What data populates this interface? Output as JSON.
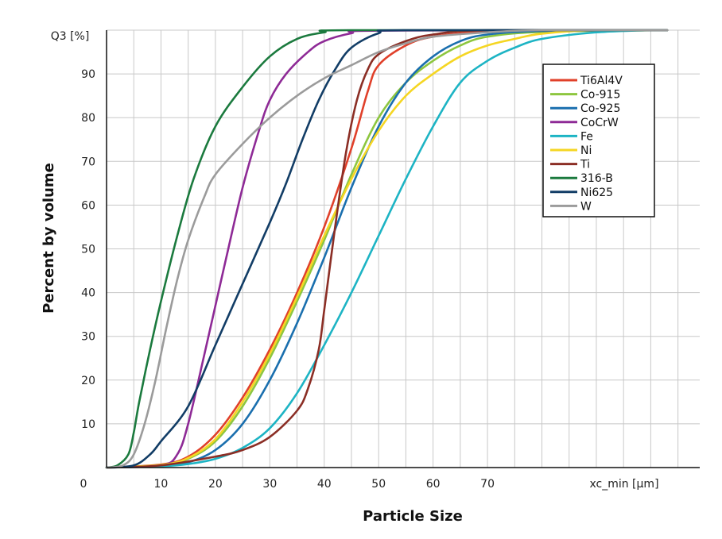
{
  "chart_data": {
    "type": "line",
    "title": "",
    "xlabel": "Particle Size",
    "ylabel": "Percent by volume",
    "x_unit_label": "xc_min [µm]",
    "y_unit_label": "Q3 [%]",
    "x_origin_label": "0",
    "xlim": [
      0,
      109
    ],
    "ylim": [
      0,
      100
    ],
    "x_ticks": [
      10,
      20,
      30,
      40,
      50,
      60,
      70
    ],
    "y_ticks": [
      10,
      20,
      30,
      40,
      50,
      60,
      70,
      80,
      90
    ],
    "grid": true,
    "legend_position": "top-right",
    "series": [
      {
        "name": "Ti6Al4V",
        "color": "#e0402a",
        "points": [
          [
            0,
            0
          ],
          [
            10,
            0.7
          ],
          [
            15,
            2.5
          ],
          [
            20,
            7.5
          ],
          [
            25,
            16
          ],
          [
            30,
            27
          ],
          [
            35,
            40
          ],
          [
            40,
            55
          ],
          [
            45,
            73
          ],
          [
            48,
            86
          ],
          [
            50,
            92
          ],
          [
            55,
            96.5
          ],
          [
            60,
            98.5
          ],
          [
            70,
            99.8
          ],
          [
            80,
            100
          ],
          [
            103,
            100
          ]
        ]
      },
      {
        "name": "Co-915",
        "color": "#8dc63f",
        "points": [
          [
            0,
            0
          ],
          [
            10,
            0.5
          ],
          [
            15,
            2
          ],
          [
            20,
            6
          ],
          [
            25,
            14
          ],
          [
            30,
            25
          ],
          [
            35,
            38
          ],
          [
            40,
            52
          ],
          [
            45,
            67
          ],
          [
            50,
            80
          ],
          [
            55,
            88
          ],
          [
            60,
            93
          ],
          [
            65,
            96.5
          ],
          [
            70,
            98.5
          ],
          [
            80,
            99.6
          ],
          [
            103,
            100
          ]
        ]
      },
      {
        "name": "Co-925",
        "color": "#1a6fae",
        "points": [
          [
            0,
            0
          ],
          [
            10,
            0.4
          ],
          [
            15,
            1.2
          ],
          [
            20,
            4
          ],
          [
            25,
            10
          ],
          [
            30,
            20
          ],
          [
            35,
            33
          ],
          [
            40,
            48
          ],
          [
            45,
            64
          ],
          [
            50,
            78
          ],
          [
            55,
            88
          ],
          [
            60,
            94
          ],
          [
            65,
            97.5
          ],
          [
            70,
            99
          ],
          [
            80,
            99.8
          ],
          [
            103,
            100
          ]
        ]
      },
      {
        "name": "CoCrW",
        "color": "#8e2a96",
        "points": [
          [
            0,
            0
          ],
          [
            10,
            0.5
          ],
          [
            13,
            3
          ],
          [
            15,
            10
          ],
          [
            18,
            26
          ],
          [
            20,
            37
          ],
          [
            22,
            48
          ],
          [
            25,
            64
          ],
          [
            28,
            77
          ],
          [
            30,
            84
          ],
          [
            33,
            90
          ],
          [
            37,
            95
          ],
          [
            40,
            97.5
          ],
          [
            45,
            99.3
          ],
          [
            50,
            99.9
          ],
          [
            103,
            100
          ]
        ]
      },
      {
        "name": "Fe",
        "color": "#1db4c4",
        "points": [
          [
            0,
            0
          ],
          [
            10,
            0.3
          ],
          [
            15,
            0.8
          ],
          [
            20,
            2
          ],
          [
            25,
            4.5
          ],
          [
            30,
            9
          ],
          [
            35,
            17
          ],
          [
            40,
            28
          ],
          [
            45,
            40
          ],
          [
            50,
            53
          ],
          [
            55,
            66
          ],
          [
            60,
            78
          ],
          [
            65,
            88
          ],
          [
            70,
            93
          ],
          [
            75,
            96
          ],
          [
            80,
            98
          ],
          [
            90,
            99.5
          ],
          [
            100,
            100
          ],
          [
            103,
            100
          ]
        ]
      },
      {
        "name": "Ni",
        "color": "#f5d623",
        "points": [
          [
            0,
            0
          ],
          [
            10,
            0.6
          ],
          [
            15,
            2.2
          ],
          [
            20,
            6.5
          ],
          [
            25,
            15
          ],
          [
            30,
            26
          ],
          [
            35,
            39
          ],
          [
            40,
            53
          ],
          [
            45,
            66
          ],
          [
            50,
            77
          ],
          [
            55,
            85
          ],
          [
            60,
            90
          ],
          [
            65,
            94
          ],
          [
            70,
            96.5
          ],
          [
            75,
            98
          ],
          [
            80,
            99.2
          ],
          [
            90,
            100
          ],
          [
            103,
            100
          ]
        ]
      },
      {
        "name": "Ti",
        "color": "#8b2e25",
        "points": [
          [
            0,
            0
          ],
          [
            10,
            0.5
          ],
          [
            20,
            2.5
          ],
          [
            25,
            4
          ],
          [
            30,
            7
          ],
          [
            35,
            13
          ],
          [
            37,
            18
          ],
          [
            39,
            27
          ],
          [
            40,
            36
          ],
          [
            42,
            55
          ],
          [
            44,
            72
          ],
          [
            46,
            84
          ],
          [
            48,
            91
          ],
          [
            50,
            94.5
          ],
          [
            55,
            97.5
          ],
          [
            60,
            99
          ],
          [
            70,
            100
          ],
          [
            103,
            100
          ]
        ]
      },
      {
        "name": "316-B",
        "color": "#1b7a3e",
        "points": [
          [
            0,
            0
          ],
          [
            2,
            0.5
          ],
          [
            4,
            3
          ],
          [
            5,
            8
          ],
          [
            6,
            15
          ],
          [
            8,
            27
          ],
          [
            10,
            38
          ],
          [
            13,
            53
          ],
          [
            16,
            66
          ],
          [
            20,
            78
          ],
          [
            25,
            87
          ],
          [
            30,
            94
          ],
          [
            35,
            98
          ],
          [
            40,
            99.5
          ],
          [
            45,
            100
          ],
          [
            103,
            100
          ]
        ]
      },
      {
        "name": "Ni625",
        "color": "#123d66",
        "points": [
          [
            0,
            0
          ],
          [
            5,
            0.5
          ],
          [
            8,
            3
          ],
          [
            10,
            6
          ],
          [
            15,
            14
          ],
          [
            20,
            28
          ],
          [
            25,
            42
          ],
          [
            30,
            56
          ],
          [
            33,
            65
          ],
          [
            36,
            75
          ],
          [
            39,
            84
          ],
          [
            42,
            91
          ],
          [
            45,
            96
          ],
          [
            50,
            99.3
          ],
          [
            55,
            100
          ],
          [
            103,
            100
          ]
        ]
      },
      {
        "name": "W",
        "color": "#9b9b9b",
        "points": [
          [
            0,
            0
          ],
          [
            3,
            0.5
          ],
          [
            5,
            3
          ],
          [
            7,
            10
          ],
          [
            9,
            20
          ],
          [
            11,
            32
          ],
          [
            13,
            43
          ],
          [
            15,
            52
          ],
          [
            18,
            62
          ],
          [
            20,
            67
          ],
          [
            25,
            74
          ],
          [
            30,
            80
          ],
          [
            35,
            85
          ],
          [
            40,
            89
          ],
          [
            45,
            92
          ],
          [
            50,
            95
          ],
          [
            55,
            97
          ],
          [
            60,
            98.5
          ],
          [
            70,
            99.5
          ],
          [
            80,
            100
          ],
          [
            103,
            100
          ]
        ]
      }
    ]
  }
}
